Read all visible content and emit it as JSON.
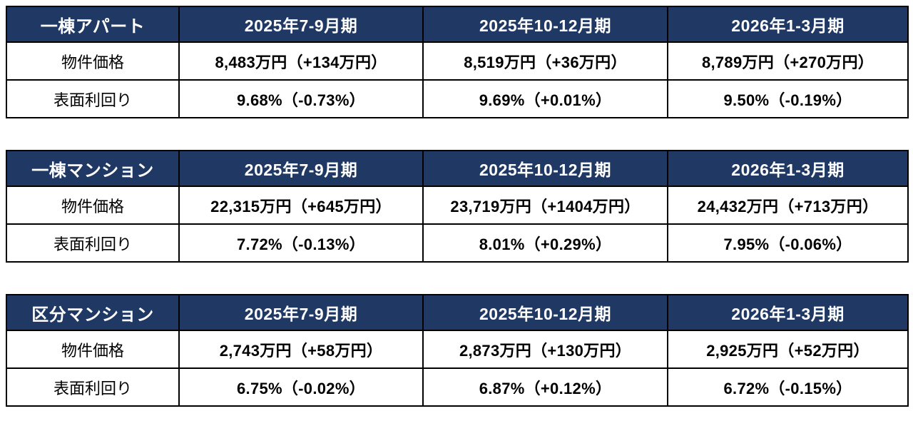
{
  "colors": {
    "page_bg": "#ffffff",
    "header_bg": "#1f3864",
    "header_text": "#ffffff",
    "value_text": "#000000",
    "border": "#000000"
  },
  "row_labels": {
    "price": "物件価格",
    "yield": "表面利回り"
  },
  "tables": [
    {
      "title": "一棟アパート",
      "quarters": [
        "2025年7-9月期",
        "2025年10-12月期",
        "2026年1-3月期"
      ],
      "prices": [
        "8,483万円（+134万円）",
        "8,519万円（+36万円）",
        "8,789万円（+270万円）"
      ],
      "yields": [
        "9.68%（-0.73%）",
        "9.69%（+0.01%）",
        "9.50%（-0.19%）"
      ]
    },
    {
      "title": "一棟マンション",
      "quarters": [
        "2025年7-9月期",
        "2025年10-12月期",
        "2026年1-3月期"
      ],
      "prices": [
        "22,315万円（+645万円）",
        "23,719万円（+1404万円）",
        "24,432万円（+713万円）"
      ],
      "yields": [
        "7.72%（-0.13%）",
        "8.01%（+0.29%）",
        "7.95%（-0.06%）"
      ]
    },
    {
      "title": "区分マンション",
      "quarters": [
        "2025年7-9月期",
        "2025年10-12月期",
        "2026年1-3月期"
      ],
      "prices": [
        "2,743万円（+58万円）",
        "2,873万円（+130万円）",
        "2,925万円（+52万円）"
      ],
      "yields": [
        "6.75%（-0.02%）",
        "6.87%（+0.12%）",
        "6.72%（-0.15%）"
      ]
    }
  ]
}
